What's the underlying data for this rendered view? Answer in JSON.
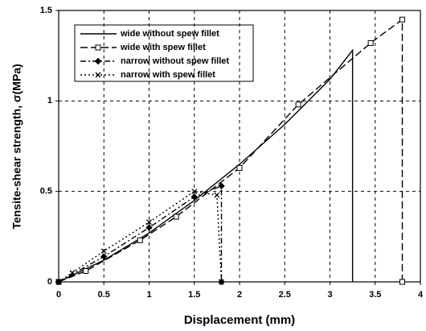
{
  "chart_data": {
    "type": "line",
    "xlabel": "Displacement (mm)",
    "ylabel": "Tensite-shear strength, σ(MPa)",
    "xlim": [
      0,
      4
    ],
    "xticks": [
      0,
      0.5,
      1,
      1.5,
      2,
      2.5,
      3,
      3.5,
      4
    ],
    "ylim": [
      0,
      1.5
    ],
    "yticks": [
      0,
      0.5,
      1,
      1.5
    ],
    "grid": true,
    "legend": "upper left",
    "series": [
      {
        "name": "wide without spew fillet",
        "color": "#000000",
        "dash": "solid",
        "marker": "none",
        "x": [
          0,
          0.5,
          1,
          1.5,
          2,
          2.5,
          3,
          3.25,
          3.25
        ],
        "values": [
          0,
          0.12,
          0.27,
          0.45,
          0.65,
          0.87,
          1.12,
          1.28,
          0
        ]
      },
      {
        "name": "wide with spew fillet",
        "color": "#000000",
        "dash": "longdash",
        "marker": "square",
        "x": [
          0,
          0.3,
          0.9,
          1.3,
          2,
          2.65,
          3.45,
          3.8,
          3.8
        ],
        "values": [
          0,
          0.06,
          0.23,
          0.36,
          0.63,
          0.98,
          1.32,
          1.45,
          0
        ]
      },
      {
        "name": "narrow without spew fillet",
        "color": "#000000",
        "dash": "dashdot",
        "marker": "diamond",
        "x": [
          0,
          0.5,
          1,
          1.5,
          1.8,
          1.8
        ],
        "values": [
          0,
          0.14,
          0.3,
          0.47,
          0.53,
          0
        ]
      },
      {
        "name": "narrow with spew fillet",
        "color": "#000000",
        "dash": "dotted",
        "marker": "cross",
        "x": [
          0,
          0.15,
          0.5,
          1,
          1.5,
          1.75,
          1.8
        ],
        "values": [
          0,
          0.05,
          0.17,
          0.33,
          0.5,
          0.48,
          0
        ]
      }
    ]
  }
}
